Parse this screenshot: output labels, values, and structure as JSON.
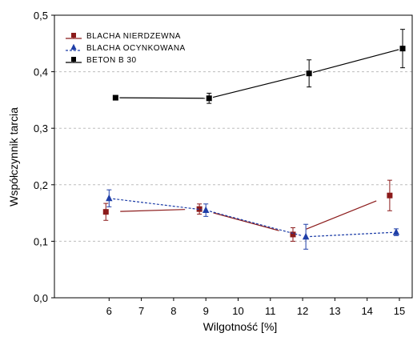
{
  "chart_data": {
    "type": "scatter",
    "xlabel": "Wilgotność [%]",
    "ylabel": "Współczynnik tarcia",
    "xlim": [
      5,
      16
    ],
    "ylim": [
      0,
      0.5
    ],
    "x_ticks": [
      6,
      7,
      8,
      9,
      10,
      11,
      12,
      13,
      14,
      15
    ],
    "y_ticks": [
      0,
      0.1,
      0.2,
      0.3,
      0.4,
      0.5
    ],
    "y_tick_labels": [
      "0,0",
      "0,1",
      "0,2",
      "0,3",
      "0,4",
      "0,5"
    ],
    "grid": "horizontal dashed",
    "legend_position": "top-left",
    "series": [
      {
        "name": "BLACHA NIERDZEWNA",
        "color": "#8b1a1a",
        "marker": "square",
        "line_style": "solid",
        "x": [
          5.9,
          8.8,
          11.7,
          14.7
        ],
        "y": [
          0.152,
          0.157,
          0.112,
          0.181
        ],
        "err": [
          0.015,
          0.009,
          0.012,
          0.027
        ]
      },
      {
        "name": "BLACHA OCYNKOWANA",
        "color": "#1f3fa8",
        "marker": "triangle",
        "line_style": "dotted",
        "x": [
          6.0,
          9.0,
          12.1,
          14.9
        ],
        "y": [
          0.176,
          0.155,
          0.108,
          0.116
        ],
        "err": [
          0.015,
          0.011,
          0.022,
          0.006
        ]
      },
      {
        "name": "BETON B 30",
        "color": "#000000",
        "marker": "square",
        "line_style": "solid",
        "x": [
          6.2,
          9.1,
          12.2,
          15.1
        ],
        "y": [
          0.354,
          0.353,
          0.397,
          0.441
        ],
        "err": [
          0.003,
          0.009,
          0.024,
          0.034
        ]
      }
    ]
  }
}
